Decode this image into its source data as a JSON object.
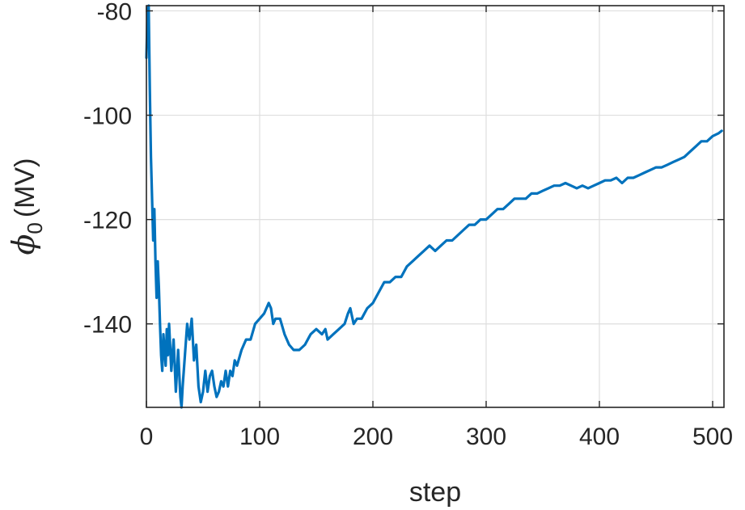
{
  "chart_data": {
    "type": "line",
    "title": "",
    "xlabel": "step",
    "ylabel": {
      "symbol": "ϕ",
      "subscript": "0",
      "unit": "(MV)"
    },
    "xlim": [
      0,
      510
    ],
    "ylim": [
      -156,
      -79
    ],
    "x_ticks": [
      0,
      100,
      200,
      300,
      400,
      500
    ],
    "y_ticks": [
      -80,
      -100,
      -120,
      -140
    ],
    "grid": true,
    "line_color": "#0072BD",
    "series": [
      {
        "x": [
          0,
          1,
          2,
          3,
          4,
          5,
          6,
          7,
          8,
          9,
          10,
          11,
          12,
          13,
          14,
          15,
          16,
          17,
          18,
          19,
          20,
          22,
          24,
          26,
          28,
          30,
          31,
          32,
          34,
          36,
          38,
          40,
          42,
          44,
          46,
          48,
          50,
          52,
          54,
          56,
          58,
          60,
          62,
          64,
          66,
          68,
          70,
          72,
          74,
          76,
          78,
          80,
          84,
          88,
          92,
          96,
          100,
          104,
          108,
          110,
          112,
          114,
          118,
          122,
          126,
          130,
          135,
          140,
          145,
          150,
          155,
          158,
          160,
          165,
          170,
          175,
          178,
          180,
          183,
          186,
          190,
          195,
          200,
          205,
          210,
          215,
          220,
          225,
          230,
          235,
          240,
          245,
          250,
          255,
          260,
          265,
          270,
          275,
          280,
          285,
          290,
          295,
          300,
          305,
          310,
          315,
          320,
          325,
          330,
          335,
          340,
          345,
          350,
          355,
          360,
          365,
          370,
          375,
          380,
          385,
          390,
          395,
          400,
          405,
          410,
          415,
          420,
          425,
          430,
          435,
          440,
          445,
          450,
          455,
          460,
          465,
          470,
          475,
          480,
          485,
          490,
          495,
          500,
          505,
          508
        ],
        "y": [
          -89,
          -80,
          -79,
          -95,
          -108,
          -116,
          -124,
          -118,
          -128,
          -135,
          -128,
          -133,
          -140,
          -146,
          -149,
          -142,
          -145,
          -148,
          -141,
          -146,
          -140,
          -149,
          -143,
          -153,
          -145,
          -154,
          -156,
          -152,
          -146,
          -140,
          -143,
          -139,
          -147,
          -144,
          -152,
          -155,
          -153,
          -149,
          -153,
          -150,
          -149,
          -152,
          -154,
          -153,
          -151,
          -152,
          -149,
          -152,
          -149,
          -150,
          -147,
          -148,
          -145,
          -143,
          -143,
          -140,
          -139,
          -138,
          -136,
          -137,
          -140,
          -139,
          -139,
          -142,
          -144,
          -145,
          -145,
          -144,
          -142,
          -141,
          -142,
          -141,
          -143,
          -142,
          -141,
          -140,
          -138,
          -137,
          -140,
          -139,
          -139,
          -137,
          -136,
          -134,
          -132,
          -132,
          -131,
          -131,
          -129,
          -128,
          -127,
          -126,
          -125,
          -126,
          -125,
          -124,
          -124,
          -123,
          -122,
          -121,
          -121,
          -120,
          -120,
          -119,
          -118,
          -118,
          -117,
          -116,
          -116,
          -116,
          -115,
          -115,
          -114.5,
          -114,
          -113.5,
          -113.5,
          -113,
          -113.5,
          -114,
          -113.5,
          -114,
          -113.5,
          -113,
          -112.5,
          -112.5,
          -112,
          -113,
          -112,
          -112,
          -111.5,
          -111,
          -110.5,
          -110,
          -110,
          -109.5,
          -109,
          -108.5,
          -108,
          -107,
          -106,
          -105,
          -105,
          -104,
          -103.5,
          -103
        ]
      }
    ]
  }
}
